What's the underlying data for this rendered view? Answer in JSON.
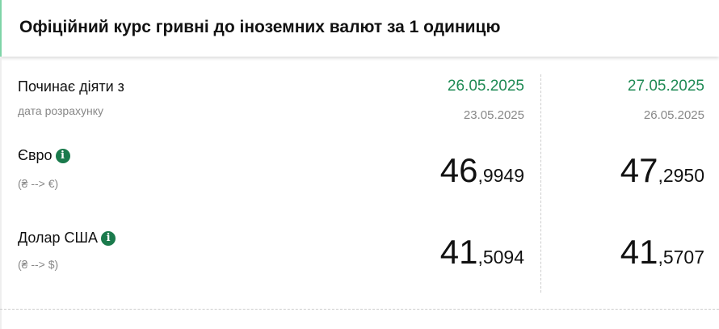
{
  "header": {
    "title": "Офіційний курс гривні до іноземних валют за 1 одиницю"
  },
  "labels": {
    "effective_from": "Починає діяти з",
    "calc_date": "дата розрахунку"
  },
  "columns": [
    {
      "effective_date": "26.05.2025",
      "calc_date": "23.05.2025"
    },
    {
      "effective_date": "27.05.2025",
      "calc_date": "26.05.2025"
    }
  ],
  "currencies": [
    {
      "name": "Євро",
      "direction": "(₴ --> €)",
      "info_icon": "info-icon",
      "rates": [
        {
          "int": "46",
          "dec": ",9949"
        },
        {
          "int": "47",
          "dec": ",2950"
        }
      ]
    },
    {
      "name": "Долар США",
      "direction": "(₴ --> $)",
      "info_icon": "info-icon",
      "rates": [
        {
          "int": "41",
          "dec": ",5094"
        },
        {
          "int": "41",
          "dec": ",5707"
        }
      ]
    }
  ],
  "colors": {
    "accent": "#1f8a55",
    "info_badge": "#1a7a4c"
  }
}
